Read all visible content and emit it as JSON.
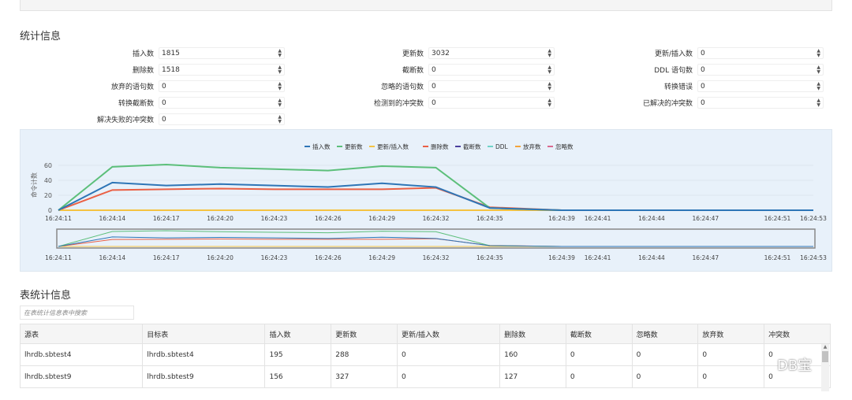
{
  "sections": {
    "stats": "统计信息",
    "table_stats": "表统计信息"
  },
  "stats": [
    {
      "label": "插入数",
      "value": "1815"
    },
    {
      "label": "更新数",
      "value": "3032"
    },
    {
      "label": "更新/插入数",
      "value": "0"
    },
    {
      "label": "删除数",
      "value": "1518"
    },
    {
      "label": "截断数",
      "value": "0"
    },
    {
      "label": "DDL 语句数",
      "value": "0"
    },
    {
      "label": "放弃的语句数",
      "value": "0"
    },
    {
      "label": "忽略的语句数",
      "value": "0"
    },
    {
      "label": "转换错误",
      "value": "0"
    },
    {
      "label": "转换截断数",
      "value": "0"
    },
    {
      "label": "检测到的冲突数",
      "value": "0"
    },
    {
      "label": "已解决的冲突数",
      "value": "0"
    },
    {
      "label": "解决失败的冲突数",
      "value": "0"
    }
  ],
  "chart_data": {
    "type": "line",
    "ylabel": "命令计数",
    "ylim": [
      0,
      60
    ],
    "yticks": [
      0,
      20,
      40,
      60
    ],
    "x": [
      "16:24:11",
      "16:24:14",
      "16:24:17",
      "16:24:20",
      "16:24:23",
      "16:24:26",
      "16:24:29",
      "16:24:32",
      "16:24:35",
      "16:24:39",
      "16:24:41",
      "16:24:44",
      "16:24:47",
      "16:24:51",
      "16:24:53"
    ],
    "xsec": [
      11,
      14,
      17,
      20,
      23,
      26,
      29,
      32,
      35,
      39,
      41,
      44,
      47,
      51,
      53
    ],
    "series": [
      {
        "name": "插入数",
        "color": "#2e75b6",
        "values": [
          0,
          37,
          33,
          35,
          33,
          31,
          36,
          31,
          3,
          0,
          0,
          0,
          0,
          0,
          0
        ]
      },
      {
        "name": "更新数",
        "color": "#5cbf7a",
        "values": [
          0,
          58,
          61,
          57,
          55,
          53,
          59,
          57,
          3,
          0,
          0,
          0,
          0,
          0,
          0
        ]
      },
      {
        "name": "更新/插入数",
        "color": "#f5c342",
        "values": [
          0,
          0,
          0,
          0,
          0,
          0,
          0,
          0,
          0,
          0,
          0,
          0,
          0,
          0,
          0
        ]
      },
      {
        "name": "删除数",
        "color": "#ea6045",
        "values": [
          0,
          27,
          28,
          29,
          28,
          28,
          28,
          30,
          4,
          0,
          0,
          0,
          0,
          0,
          0
        ]
      },
      {
        "name": "截断数",
        "color": "#4b3f9e",
        "values": [
          0,
          0,
          0,
          0,
          0,
          0,
          0,
          0,
          0,
          0,
          0,
          0,
          0,
          0,
          0
        ]
      },
      {
        "name": "DDL",
        "color": "#6fd3c8",
        "values": [
          0,
          0,
          0,
          0,
          0,
          0,
          0,
          0,
          0,
          0,
          0,
          0,
          0,
          0,
          0
        ]
      },
      {
        "name": "放弃数",
        "color": "#f3a43b",
        "values": [
          0,
          0,
          0,
          0,
          0,
          0,
          0,
          0,
          0,
          0,
          0,
          0,
          0,
          0,
          0
        ]
      },
      {
        "name": "忽略数",
        "color": "#d9698f",
        "values": [
          0,
          0,
          0,
          0,
          0,
          0,
          0,
          0,
          0,
          0,
          0,
          0,
          0,
          0,
          0
        ]
      }
    ]
  },
  "table": {
    "search_placeholder": "在表统计信息表中搜索",
    "headers": [
      "源表",
      "目标表",
      "插入数",
      "更新数",
      "更新/插入数",
      "删除数",
      "截断数",
      "忽略数",
      "放弃数",
      "冲突数"
    ],
    "rows": [
      [
        "lhrdb.sbtest4",
        "lhrdb.sbtest4",
        "195",
        "288",
        "0",
        "160",
        "0",
        "0",
        "0",
        "0"
      ],
      [
        "lhrdb.sbtest9",
        "lhrdb.sbtest9",
        "156",
        "327",
        "0",
        "127",
        "0",
        "0",
        "0",
        "0"
      ]
    ]
  },
  "watermark": "DB宝"
}
